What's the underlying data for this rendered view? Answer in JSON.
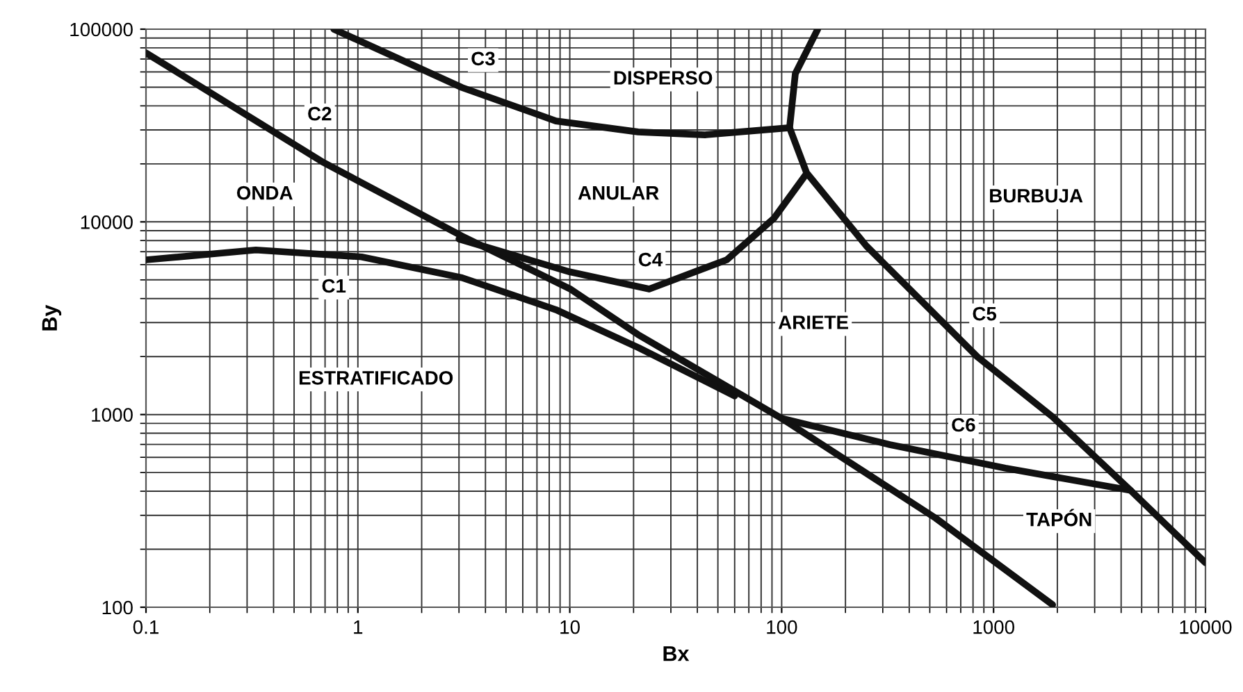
{
  "chart_data": {
    "type": "line",
    "xlabel": "Bx",
    "ylabel": "By",
    "log": "xy",
    "grid": true,
    "marker": "none",
    "line_style": "solid",
    "xlim": [
      0.1,
      10000
    ],
    "ylim": [
      100,
      100000
    ],
    "xticks": [
      0.1,
      1,
      10,
      100,
      1000,
      10000
    ],
    "yticks": [
      100,
      1000,
      10000,
      100000
    ],
    "series": [
      {
        "color": "#111111",
        "x": [
          0.1,
          0.33,
          1.04,
          3.1,
          8.6,
          21,
          60
        ],
        "values": [
          6350,
          7150,
          6580,
          5130,
          3500,
          2230,
          1250
        ]
      },
      {
        "color": "#111111",
        "x": [
          0.1,
          0.69,
          3.1,
          10,
          21,
          100,
          533,
          1900
        ],
        "values": [
          75300,
          20300,
          8440,
          4500,
          2600,
          955,
          290,
          103
        ]
      },
      {
        "color": "#111111",
        "x": [
          0.77,
          3.1,
          8.6,
          21,
          43.5,
          109
        ],
        "values": [
          100000,
          49800,
          33400,
          29300,
          28300,
          30800
        ]
      },
      {
        "color": "#111111",
        "x": [
          3.0,
          10,
          23.7,
          55,
          92,
          131
        ],
        "values": [
          8150,
          5500,
          4480,
          6350,
          10450,
          17800
        ]
      },
      {
        "color": "#111111",
        "x": [
          148,
          116,
          109,
          131,
          251,
          840,
          1900,
          4430,
          10000
        ],
        "values": [
          100000,
          58800,
          30800,
          18000,
          7500,
          1990,
          973,
          404,
          170
        ]
      },
      {
        "color": "#111111",
        "x": [
          100,
          324,
          1135,
          4430
        ],
        "values": [
          955,
          698,
          527,
          404
        ]
      }
    ],
    "annotations": [
      {
        "text": "C1",
        "x": 0.77,
        "y": 4560
      },
      {
        "text": "C2",
        "x": 0.66,
        "y": 35700
      },
      {
        "text": "C3",
        "x": 3.9,
        "y": 69000
      },
      {
        "text": "C4",
        "x": 24,
        "y": 6250
      },
      {
        "text": "C5",
        "x": 906,
        "y": 3270
      },
      {
        "text": "C6",
        "x": 721,
        "y": 867
      },
      "ONDA",
      "DISPERSO",
      "ANULAR",
      "BURBUJA",
      "ARIETE",
      "ESTRATIFICADO",
      "TAPÓN"
    ]
  }
}
